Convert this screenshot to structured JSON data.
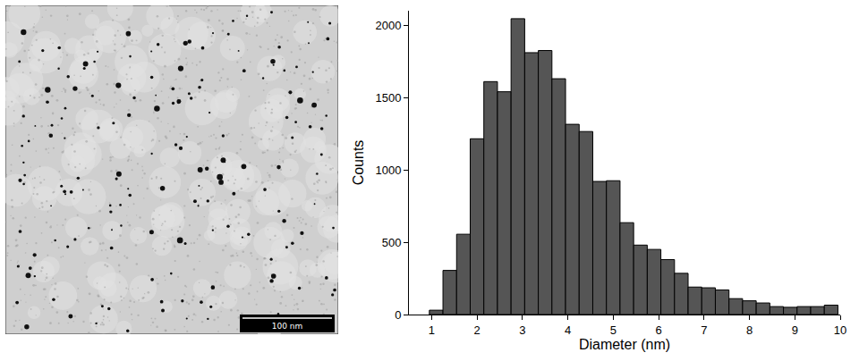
{
  "micrograph": {
    "scale_bar": "100 nm"
  },
  "chart_data": {
    "type": "histogram",
    "x_label": "Diameter (nm)",
    "y_label": "Counts",
    "bins": [
      0.95,
      1.25,
      1.55,
      1.85,
      2.15,
      2.45,
      2.75,
      3.05,
      3.35,
      3.65,
      3.95,
      4.25,
      4.55,
      4.85,
      5.15,
      5.45,
      5.75,
      6.05,
      6.35,
      6.65,
      6.95,
      7.25,
      7.55,
      7.85,
      8.15,
      8.45,
      8.75,
      9.05,
      9.35,
      9.65,
      9.95
    ],
    "values": [
      30,
      305,
      555,
      1215,
      1610,
      1540,
      2045,
      1810,
      1825,
      1630,
      1315,
      1265,
      920,
      925,
      635,
      480,
      450,
      380,
      285,
      190,
      185,
      170,
      110,
      95,
      80,
      55,
      50,
      55,
      55,
      65
    ],
    "color": "#555555",
    "xlim": [
      0.5,
      10
    ],
    "xticks": [
      1,
      2,
      3,
      4,
      5,
      6,
      7,
      8,
      9,
      10
    ],
    "ylim": [
      0,
      2100
    ],
    "yticks": [
      0,
      500,
      1000,
      1500,
      2000
    ],
    "grid": false
  }
}
